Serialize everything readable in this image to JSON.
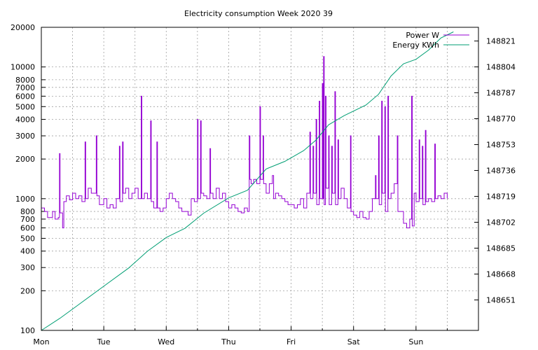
{
  "chart_data": {
    "type": "line",
    "title": "Electricity consumption Week 2020 39",
    "x_tick_labels": [
      "Mon",
      "Tue",
      "Wed",
      "Thu",
      "Fri",
      "Sat",
      "Sun"
    ],
    "xlim_days": [
      0,
      7
    ],
    "y_left": {
      "scale": "log",
      "ylim": [
        100,
        20000
      ],
      "tick_values": [
        100,
        200,
        300,
        400,
        500,
        600,
        700,
        800,
        1000,
        2000,
        3000,
        4000,
        5000,
        6000,
        7000,
        8000,
        10000,
        20000
      ],
      "tick_labels": [
        "100",
        "200",
        "300",
        "400",
        "500",
        "600",
        "700",
        "800",
        "1000",
        "2000",
        "3000",
        "4000",
        "5000",
        "6000",
        "7000",
        "8000",
        "10000",
        "20000"
      ]
    },
    "y_right": {
      "scale": "linear",
      "ylim": [
        148631,
        148830
      ],
      "tick_labels": [
        "148651",
        "148668",
        "148685",
        "148702",
        "148719",
        "148736",
        "148753",
        "148770",
        "148787",
        "148804",
        "148821"
      ]
    },
    "grid": true,
    "legend_position": "top-right",
    "series": [
      {
        "name": "Power W",
        "axis": "left",
        "color": "#9400d3",
        "style": "steps",
        "points": [
          [
            0.0,
            850
          ],
          [
            0.05,
            800
          ],
          [
            0.1,
            720
          ],
          [
            0.18,
            800
          ],
          [
            0.22,
            700
          ],
          [
            0.27,
            720
          ],
          [
            0.29,
            2200
          ],
          [
            0.3,
            780
          ],
          [
            0.34,
            600
          ],
          [
            0.36,
            950
          ],
          [
            0.4,
            1050
          ],
          [
            0.45,
            980
          ],
          [
            0.5,
            1100
          ],
          [
            0.55,
            1000
          ],
          [
            0.6,
            1050
          ],
          [
            0.65,
            950
          ],
          [
            0.7,
            2700
          ],
          [
            0.71,
            1000
          ],
          [
            0.75,
            1200
          ],
          [
            0.8,
            1100
          ],
          [
            0.88,
            3000
          ],
          [
            0.89,
            1050
          ],
          [
            0.93,
            900
          ],
          [
            1.0,
            1000
          ],
          [
            1.05,
            850
          ],
          [
            1.1,
            900
          ],
          [
            1.15,
            850
          ],
          [
            1.2,
            1000
          ],
          [
            1.25,
            2500
          ],
          [
            1.26,
            950
          ],
          [
            1.3,
            2700
          ],
          [
            1.31,
            1100
          ],
          [
            1.35,
            1200
          ],
          [
            1.4,
            1000
          ],
          [
            1.45,
            1100
          ],
          [
            1.5,
            1200
          ],
          [
            1.55,
            1000
          ],
          [
            1.6,
            6000
          ],
          [
            1.61,
            1000
          ],
          [
            1.65,
            1100
          ],
          [
            1.7,
            1000
          ],
          [
            1.75,
            3900
          ],
          [
            1.76,
            950
          ],
          [
            1.8,
            850
          ],
          [
            1.85,
            2700
          ],
          [
            1.86,
            850
          ],
          [
            1.9,
            800
          ],
          [
            1.95,
            850
          ],
          [
            2.0,
            1000
          ],
          [
            2.05,
            1100
          ],
          [
            2.1,
            1000
          ],
          [
            2.15,
            950
          ],
          [
            2.2,
            850
          ],
          [
            2.25,
            800
          ],
          [
            2.3,
            800
          ],
          [
            2.35,
            750
          ],
          [
            2.4,
            1000
          ],
          [
            2.45,
            950
          ],
          [
            2.5,
            4000
          ],
          [
            2.51,
            1000
          ],
          [
            2.55,
            3900
          ],
          [
            2.56,
            1100
          ],
          [
            2.6,
            1050
          ],
          [
            2.65,
            1000
          ],
          [
            2.7,
            2400
          ],
          [
            2.71,
            1100
          ],
          [
            2.75,
            1000
          ],
          [
            2.8,
            1200
          ],
          [
            2.85,
            1000
          ],
          [
            2.9,
            1100
          ],
          [
            2.95,
            950
          ],
          [
            3.0,
            850
          ],
          [
            3.05,
            900
          ],
          [
            3.1,
            850
          ],
          [
            3.15,
            800
          ],
          [
            3.2,
            780
          ],
          [
            3.25,
            850
          ],
          [
            3.3,
            800
          ],
          [
            3.33,
            3000
          ],
          [
            3.34,
            1400
          ],
          [
            3.36,
            1300
          ],
          [
            3.4,
            1400
          ],
          [
            3.45,
            1300
          ],
          [
            3.5,
            5000
          ],
          [
            3.51,
            1400
          ],
          [
            3.55,
            3000
          ],
          [
            3.56,
            1300
          ],
          [
            3.6,
            1100
          ],
          [
            3.65,
            1300
          ],
          [
            3.7,
            1500
          ],
          [
            3.72,
            1000
          ],
          [
            3.75,
            1100
          ],
          [
            3.8,
            1050
          ],
          [
            3.85,
            1000
          ],
          [
            3.9,
            950
          ],
          [
            3.95,
            900
          ],
          [
            4.0,
            900
          ],
          [
            4.05,
            850
          ],
          [
            4.1,
            900
          ],
          [
            4.15,
            1000
          ],
          [
            4.2,
            850
          ],
          [
            4.25,
            1100
          ],
          [
            4.3,
            3200
          ],
          [
            4.31,
            1000
          ],
          [
            4.35,
            2500
          ],
          [
            4.36,
            1100
          ],
          [
            4.4,
            4000
          ],
          [
            4.41,
            900
          ],
          [
            4.45,
            5500
          ],
          [
            4.46,
            1000
          ],
          [
            4.5,
            7500
          ],
          [
            4.51,
            1000
          ],
          [
            4.52,
            12000
          ],
          [
            4.53,
            900
          ],
          [
            4.55,
            6000
          ],
          [
            4.56,
            1200
          ],
          [
            4.6,
            3000
          ],
          [
            4.61,
            900
          ],
          [
            4.65,
            2500
          ],
          [
            4.66,
            1100
          ],
          [
            4.7,
            6500
          ],
          [
            4.71,
            900
          ],
          [
            4.75,
            2800
          ],
          [
            4.76,
            1000
          ],
          [
            4.8,
            1200
          ],
          [
            4.85,
            1000
          ],
          [
            4.9,
            850
          ],
          [
            4.95,
            3000
          ],
          [
            4.96,
            800
          ],
          [
            5.0,
            750
          ],
          [
            5.05,
            720
          ],
          [
            5.1,
            800
          ],
          [
            5.15,
            720
          ],
          [
            5.2,
            700
          ],
          [
            5.25,
            800
          ],
          [
            5.3,
            1000
          ],
          [
            5.35,
            1500
          ],
          [
            5.36,
            1000
          ],
          [
            5.4,
            3000
          ],
          [
            5.41,
            900
          ],
          [
            5.45,
            5500
          ],
          [
            5.46,
            1100
          ],
          [
            5.5,
            5000
          ],
          [
            5.51,
            800
          ],
          [
            5.55,
            6000
          ],
          [
            5.56,
            1000
          ],
          [
            5.6,
            1100
          ],
          [
            5.65,
            1300
          ],
          [
            5.7,
            3000
          ],
          [
            5.71,
            800
          ],
          [
            5.75,
            800
          ],
          [
            5.8,
            650
          ],
          [
            5.85,
            600
          ],
          [
            5.9,
            700
          ],
          [
            5.93,
            6000
          ],
          [
            5.94,
            620
          ],
          [
            5.97,
            1100
          ],
          [
            6.0,
            950
          ],
          [
            6.05,
            2800
          ],
          [
            6.06,
            1000
          ],
          [
            6.1,
            2500
          ],
          [
            6.11,
            900
          ],
          [
            6.15,
            3300
          ],
          [
            6.16,
            950
          ],
          [
            6.2,
            1000
          ],
          [
            6.25,
            950
          ],
          [
            6.3,
            2600
          ],
          [
            6.31,
            1000
          ],
          [
            6.35,
            1050
          ],
          [
            6.4,
            1000
          ],
          [
            6.45,
            1100
          ],
          [
            6.5,
            1000
          ]
        ]
      },
      {
        "name": "Energy KWh",
        "axis": "right",
        "color": "#009e73",
        "style": "line",
        "points": [
          [
            0.0,
            148631
          ],
          [
            0.3,
            148639
          ],
          [
            0.6,
            148648
          ],
          [
            1.0,
            148660
          ],
          [
            1.4,
            148672
          ],
          [
            1.7,
            148683
          ],
          [
            2.0,
            148692
          ],
          [
            2.3,
            148698
          ],
          [
            2.6,
            148708
          ],
          [
            3.0,
            148718
          ],
          [
            3.3,
            148723
          ],
          [
            3.6,
            148737
          ],
          [
            3.9,
            148742
          ],
          [
            4.2,
            148749
          ],
          [
            4.4,
            148756
          ],
          [
            4.6,
            148766
          ],
          [
            4.85,
            148772
          ],
          [
            5.2,
            148779
          ],
          [
            5.4,
            148786
          ],
          [
            5.6,
            148798
          ],
          [
            5.8,
            148806
          ],
          [
            6.0,
            148809
          ],
          [
            6.2,
            148815
          ],
          [
            6.4,
            148823
          ],
          [
            6.6,
            148827
          ]
        ]
      }
    ]
  }
}
